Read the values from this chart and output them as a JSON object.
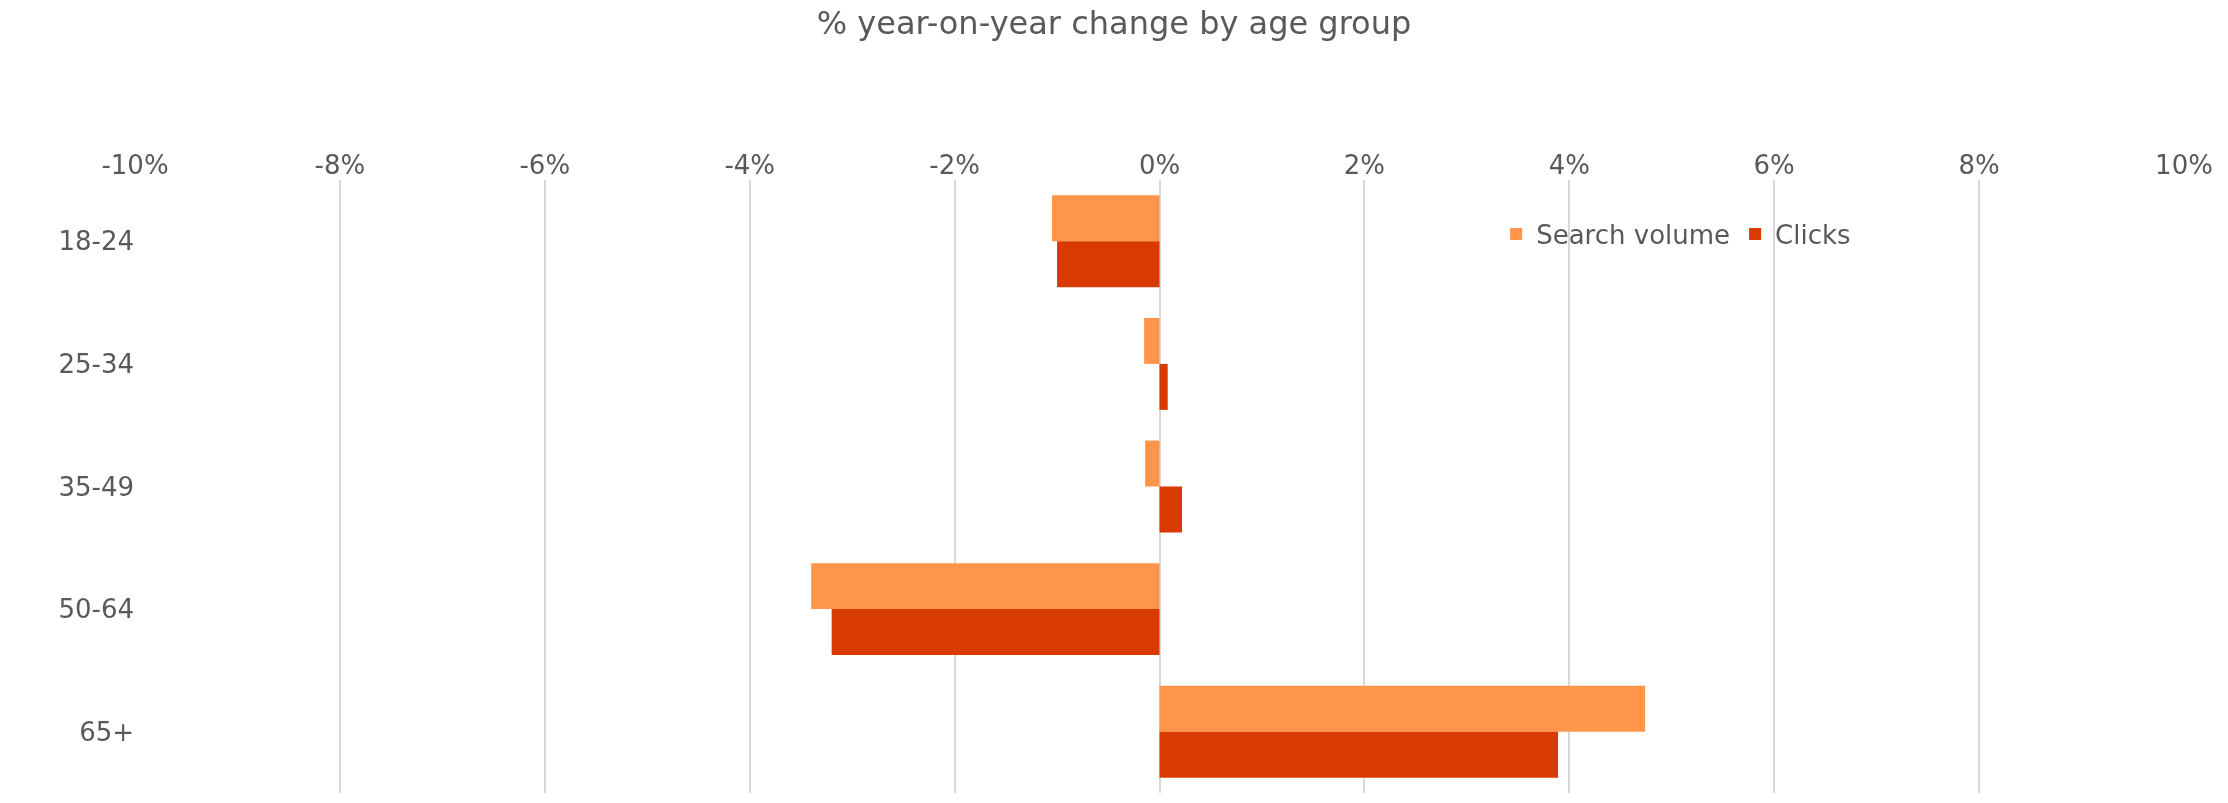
{
  "chart_data": {
    "type": "bar",
    "orientation": "horizontal",
    "title": "% year-on-year change by age group",
    "categories": [
      "18-24",
      "25-34",
      "35-49",
      "50-64",
      "65+"
    ],
    "series": [
      {
        "name": "Search volume",
        "color": "#ff9549",
        "values": [
          -1.05,
          -0.15,
          -0.14,
          -3.4,
          4.74
        ]
      },
      {
        "name": "Clicks",
        "color": "#d83b01",
        "values": [
          -1.0,
          0.08,
          0.22,
          -3.2,
          3.89
        ]
      }
    ],
    "xlim": [
      -10,
      10
    ],
    "xticks": [
      {
        "value": -10,
        "label": "-10%"
      },
      {
        "value": -8,
        "label": "-8%"
      },
      {
        "value": -6,
        "label": "-6%"
      },
      {
        "value": -4,
        "label": "-4%"
      },
      {
        "value": -2,
        "label": "-2%"
      },
      {
        "value": 0,
        "label": "0%"
      },
      {
        "value": 2,
        "label": "2%"
      },
      {
        "value": 4,
        "label": "4%"
      },
      {
        "value": 6,
        "label": "6%"
      },
      {
        "value": 8,
        "label": "8%"
      },
      {
        "value": 10,
        "label": "10%"
      }
    ],
    "grid": "x",
    "legend": "top right"
  }
}
